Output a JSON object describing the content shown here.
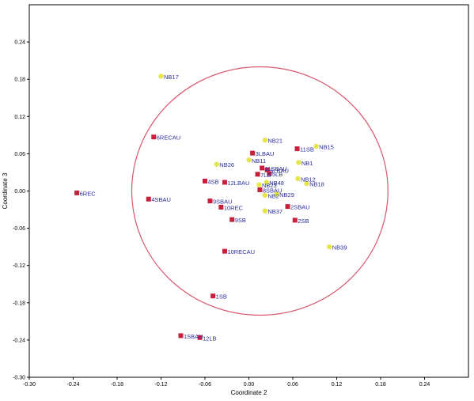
{
  "chart_data": {
    "type": "scatter",
    "xlabel": "Coordinate 2",
    "ylabel": "Coordinate 3",
    "xlim": [
      -0.3,
      0.3
    ],
    "ylim": [
      -0.3,
      0.3
    ],
    "x_ticks": [
      -0.3,
      -0.24,
      -0.18,
      -0.12,
      -0.06,
      0.0,
      0.06,
      0.12,
      0.18,
      0.24
    ],
    "x_tick_labels": [
      "-0.30",
      "-0.24",
      "-0.18",
      "-0.12",
      "-0.06",
      "0.00",
      "0.06",
      "0.12",
      "0.18",
      "0.24"
    ],
    "y_ticks": [
      0.24,
      0.18,
      0.12,
      0.06,
      0.0,
      -0.06,
      -0.12,
      -0.18,
      -0.24,
      -0.3
    ],
    "y_tick_labels": [
      "0.24",
      "0.18",
      "0.12",
      "0.06",
      "0.00",
      "-0.06",
      "-0.12",
      "-0.18",
      "-0.24",
      "-0.30"
    ],
    "grid": false,
    "legend": "none",
    "colors": {
      "red_marker": "#c8203c",
      "yellow_marker": "#e6e64a",
      "label": "#2b2f9c",
      "ellipse": "#d9556b"
    },
    "ellipse": {
      "center": [
        0.015,
        0.0
      ],
      "radius_x": 0.175,
      "radius_y": 0.2
    },
    "series": [
      {
        "marker": "square",
        "color": "#c8203c",
        "points": [
          {
            "label": "6REC",
            "x": -0.235,
            "y": -0.003
          },
          {
            "label": "6RECAU",
            "x": -0.13,
            "y": 0.087
          },
          {
            "label": "4SBAU",
            "x": -0.137,
            "y": -0.013
          },
          {
            "label": "4SB",
            "x": -0.06,
            "y": 0.016
          },
          {
            "label": "12LBAU",
            "x": -0.033,
            "y": 0.014
          },
          {
            "label": "9SBAU",
            "x": -0.053,
            "y": -0.016
          },
          {
            "label": "10REC",
            "x": -0.038,
            "y": -0.026
          },
          {
            "label": "9SB",
            "x": -0.023,
            "y": -0.046
          },
          {
            "label": "10RECAU",
            "x": -0.033,
            "y": -0.097
          },
          {
            "label": "1SB",
            "x": -0.049,
            "y": -0.169
          },
          {
            "label": "1SBAU",
            "x": -0.093,
            "y": -0.233
          },
          {
            "label": "12LB",
            "x": -0.067,
            "y": -0.236
          },
          {
            "label": "3LBAU",
            "x": 0.005,
            "y": 0.061
          },
          {
            "label": "11SBAU",
            "x": 0.018,
            "y": 0.037
          },
          {
            "label": "7LB",
            "x": 0.012,
            "y": 0.027
          },
          {
            "label": "8SBAU",
            "x": 0.015,
            "y": 0.002
          },
          {
            "label": "5LBAU",
            "x": 0.025,
            "y": 0.034
          },
          {
            "label": "5LB",
            "x": 0.028,
            "y": 0.028
          },
          {
            "label": "2SBAU",
            "x": 0.053,
            "y": -0.025
          },
          {
            "label": "2SB",
            "x": 0.063,
            "y": -0.047
          },
          {
            "label": "11SB",
            "x": 0.066,
            "y": 0.068
          }
        ]
      },
      {
        "marker": "circle",
        "color": "#e6e64a",
        "points": [
          {
            "label": "NB17",
            "x": -0.12,
            "y": 0.185
          },
          {
            "label": "NB26",
            "x": -0.044,
            "y": 0.043
          },
          {
            "label": "NB11",
            "x": 0.0,
            "y": 0.05
          },
          {
            "label": "NB21",
            "x": 0.022,
            "y": 0.082
          },
          {
            "label": "NB15",
            "x": 0.092,
            "y": 0.072
          },
          {
            "label": "NB1",
            "x": 0.068,
            "y": 0.046
          },
          {
            "label": "NB12",
            "x": 0.067,
            "y": 0.02
          },
          {
            "label": "NB18",
            "x": 0.079,
            "y": 0.012
          },
          {
            "label": "NB48",
            "x": 0.024,
            "y": 0.014
          },
          {
            "label": "NB23",
            "x": 0.014,
            "y": 0.01
          },
          {
            "label": "NB2",
            "x": 0.022,
            "y": -0.007
          },
          {
            "label": "NB29",
            "x": 0.038,
            "y": -0.005
          },
          {
            "label": "NB37",
            "x": 0.022,
            "y": -0.032
          },
          {
            "label": "NB39",
            "x": 0.11,
            "y": -0.09
          }
        ]
      }
    ]
  }
}
